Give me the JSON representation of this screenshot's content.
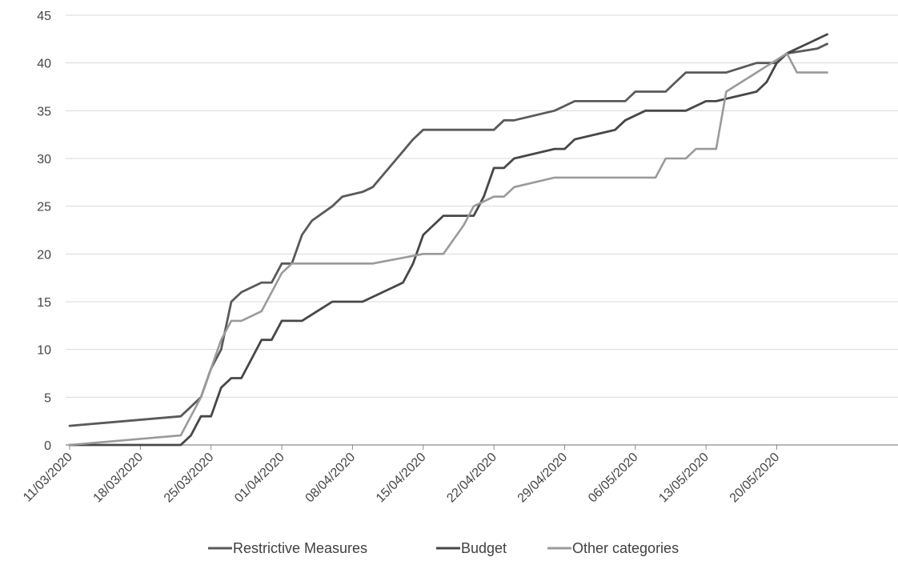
{
  "chart_data": {
    "type": "line",
    "title": "",
    "xlabel": "",
    "ylabel": "",
    "ylim": [
      0,
      45
    ],
    "yticks": [
      "0",
      "5",
      "10",
      "15",
      "20",
      "25",
      "30",
      "35",
      "40",
      "45"
    ],
    "x_range": [
      "11/03/2020",
      "01/06/2020"
    ],
    "xticks": [
      "11/03/2020",
      "18/03/2020",
      "25/03/2020",
      "01/04/2020",
      "08/04/2020",
      "15/04/2020",
      "22/04/2020",
      "29/04/2020",
      "06/05/2020",
      "13/05/2020",
      "20/05/2020"
    ],
    "grid": "horizontal",
    "legend_position": "bottom",
    "series": [
      {
        "name": "Restrictive Measures",
        "color": "#5a5a5a",
        "points": [
          [
            "11/03/2020",
            2
          ],
          [
            "22/03/2020",
            3
          ],
          [
            "23/03/2020",
            4
          ],
          [
            "24/03/2020",
            5
          ],
          [
            "25/03/2020",
            8
          ],
          [
            "26/03/2020",
            10
          ],
          [
            "27/03/2020",
            15
          ],
          [
            "28/03/2020",
            16
          ],
          [
            "30/03/2020",
            17
          ],
          [
            "31/03/2020",
            17
          ],
          [
            "01/04/2020",
            19
          ],
          [
            "02/04/2020",
            19
          ],
          [
            "03/04/2020",
            22
          ],
          [
            "04/04/2020",
            23.5
          ],
          [
            "06/04/2020",
            25
          ],
          [
            "07/04/2020",
            26
          ],
          [
            "09/04/2020",
            26.5
          ],
          [
            "10/04/2020",
            27
          ],
          [
            "12/04/2020",
            29.5
          ],
          [
            "14/04/2020",
            32
          ],
          [
            "15/04/2020",
            33
          ],
          [
            "22/04/2020",
            33
          ],
          [
            "23/04/2020",
            34
          ],
          [
            "24/04/2020",
            34
          ],
          [
            "28/04/2020",
            35
          ],
          [
            "29/04/2020",
            35.5
          ],
          [
            "30/04/2020",
            36
          ],
          [
            "05/05/2020",
            36
          ],
          [
            "06/05/2020",
            37
          ],
          [
            "09/05/2020",
            37
          ],
          [
            "10/05/2020",
            38
          ],
          [
            "11/05/2020",
            39
          ],
          [
            "15/05/2020",
            39
          ],
          [
            "18/05/2020",
            40
          ],
          [
            "20/05/2020",
            40
          ],
          [
            "21/05/2020",
            41
          ],
          [
            "24/05/2020",
            41.5
          ],
          [
            "25/05/2020",
            42
          ]
        ]
      },
      {
        "name": "Budget",
        "color": "#474747",
        "points": [
          [
            "11/03/2020",
            0
          ],
          [
            "22/03/2020",
            0
          ],
          [
            "23/03/2020",
            1
          ],
          [
            "24/03/2020",
            3
          ],
          [
            "25/03/2020",
            3
          ],
          [
            "26/03/2020",
            6
          ],
          [
            "27/03/2020",
            7
          ],
          [
            "28/03/2020",
            7
          ],
          [
            "29/03/2020",
            9
          ],
          [
            "30/03/2020",
            11
          ],
          [
            "31/03/2020",
            11
          ],
          [
            "01/04/2020",
            13
          ],
          [
            "03/04/2020",
            13
          ],
          [
            "06/04/2020",
            15
          ],
          [
            "08/04/2020",
            15
          ],
          [
            "09/04/2020",
            15
          ],
          [
            "12/04/2020",
            16.5
          ],
          [
            "13/04/2020",
            17
          ],
          [
            "14/04/2020",
            19
          ],
          [
            "15/04/2020",
            22
          ],
          [
            "17/04/2020",
            24
          ],
          [
            "19/04/2020",
            24
          ],
          [
            "20/04/2020",
            24
          ],
          [
            "21/04/2020",
            26
          ],
          [
            "22/04/2020",
            29
          ],
          [
            "23/04/2020",
            29
          ],
          [
            "24/04/2020",
            30
          ],
          [
            "28/04/2020",
            31
          ],
          [
            "29/04/2020",
            31
          ],
          [
            "30/04/2020",
            32
          ],
          [
            "04/05/2020",
            33
          ],
          [
            "05/05/2020",
            34
          ],
          [
            "07/05/2020",
            35
          ],
          [
            "11/05/2020",
            35
          ],
          [
            "13/05/2020",
            36
          ],
          [
            "14/05/2020",
            36
          ],
          [
            "18/05/2020",
            37
          ],
          [
            "19/05/2020",
            38
          ],
          [
            "20/05/2020",
            40
          ],
          [
            "21/05/2020",
            41
          ],
          [
            "25/05/2020",
            43
          ]
        ]
      },
      {
        "name": "Other categories",
        "color": "#9a9a9a",
        "points": [
          [
            "11/03/2020",
            0
          ],
          [
            "22/03/2020",
            1
          ],
          [
            "23/03/2020",
            3
          ],
          [
            "24/03/2020",
            5
          ],
          [
            "25/03/2020",
            8
          ],
          [
            "26/03/2020",
            11
          ],
          [
            "27/03/2020",
            13
          ],
          [
            "28/03/2020",
            13
          ],
          [
            "30/03/2020",
            14
          ],
          [
            "31/03/2020",
            16
          ],
          [
            "01/04/2020",
            18
          ],
          [
            "02/04/2020",
            19
          ],
          [
            "10/04/2020",
            19
          ],
          [
            "15/04/2020",
            20
          ],
          [
            "17/04/2020",
            20
          ],
          [
            "19/04/2020",
            23
          ],
          [
            "20/04/2020",
            25
          ],
          [
            "22/04/2020",
            26
          ],
          [
            "23/04/2020",
            26
          ],
          [
            "24/04/2020",
            27
          ],
          [
            "28/04/2020",
            28
          ],
          [
            "29/04/2020",
            28
          ],
          [
            "08/05/2020",
            28
          ],
          [
            "09/05/2020",
            30
          ],
          [
            "11/05/2020",
            30
          ],
          [
            "12/05/2020",
            31
          ],
          [
            "14/05/2020",
            31
          ],
          [
            "15/05/2020",
            37
          ],
          [
            "18/05/2020",
            39
          ],
          [
            "21/05/2020",
            41
          ],
          [
            "22/05/2020",
            39
          ],
          [
            "25/05/2020",
            39
          ]
        ]
      }
    ]
  }
}
